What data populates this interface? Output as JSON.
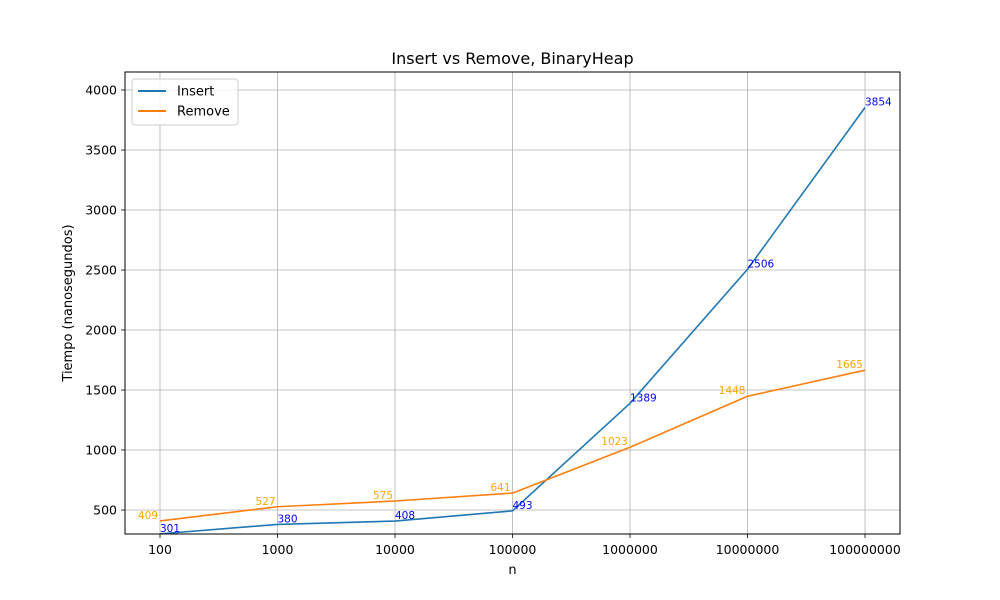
{
  "chart_data": {
    "type": "line",
    "title": "Insert vs Remove, BinaryHeap",
    "xlabel": "n",
    "ylabel": "Tiempo (nanosegundos)",
    "categories": [
      "100",
      "1000",
      "10000",
      "100000",
      "1000000",
      "10000000",
      "100000000"
    ],
    "ylim": [
      300,
      4000
    ],
    "yticks": [
      500,
      1000,
      1500,
      2000,
      2500,
      3000,
      3500,
      4000
    ],
    "grid": true,
    "legend_position": "top-left",
    "series": [
      {
        "name": "Insert",
        "values": [
          301,
          380,
          408,
          493,
          1389,
          2506,
          3854
        ],
        "color": "#1f77b4",
        "label_color": "#0000ff"
      },
      {
        "name": "Remove",
        "values": [
          409,
          527,
          575,
          641,
          1023,
          1448,
          1665
        ],
        "color": "#ff7f0e",
        "label_color": "#ffa500"
      }
    ]
  }
}
